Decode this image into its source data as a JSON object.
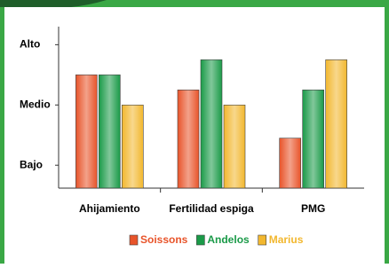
{
  "chart_data": {
    "type": "bar",
    "categories": [
      "Ahijamiento",
      "Fertilidad espiga",
      "PMG"
    ],
    "series": [
      {
        "name": "Soissons",
        "color": "#e8542a",
        "values": [
          2.5,
          2.25,
          1.45
        ]
      },
      {
        "name": "Andelos",
        "color": "#1a9a48",
        "values": [
          2.5,
          2.75,
          2.25
        ]
      },
      {
        "name": "Marius",
        "color": "#f2b72e",
        "values": [
          2.0,
          2.0,
          2.75
        ]
      }
    ],
    "ylim": [
      0.62,
      3.3
    ],
    "yticks": [
      {
        "value": 1,
        "label": "Bajo"
      },
      {
        "value": 2,
        "label": "Medio"
      },
      {
        "value": 3,
        "label": "Alto"
      }
    ],
    "grid": false
  }
}
